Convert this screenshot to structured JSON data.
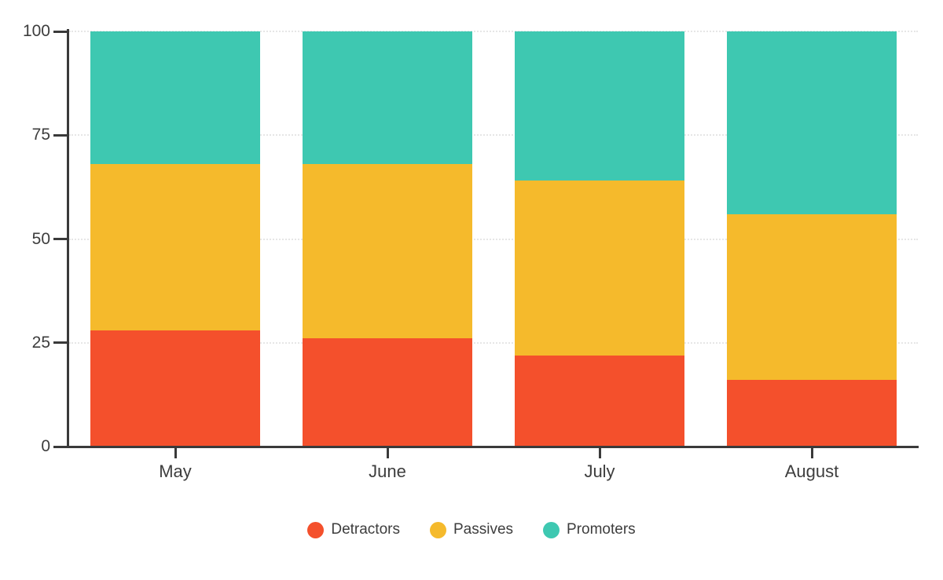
{
  "chart_data": {
    "type": "bar",
    "stacked": true,
    "title": "",
    "xlabel": "",
    "ylabel": "",
    "categories": [
      "May",
      "June",
      "July",
      "August"
    ],
    "series": [
      {
        "name": "Detractors",
        "color": "#f4502c",
        "values": [
          28,
          26,
          22,
          16
        ]
      },
      {
        "name": "Passives",
        "color": "#f5ba2c",
        "values": [
          40,
          42,
          42,
          40
        ]
      },
      {
        "name": "Promoters",
        "color": "#3ec8b1",
        "values": [
          32,
          32,
          36,
          44
        ]
      }
    ],
    "ylim": [
      0,
      100
    ],
    "yticks": [
      0,
      25,
      50,
      75,
      100
    ],
    "grid": "horizontal-dotted",
    "legend_position": "bottom"
  },
  "colors": {
    "axis": "#3a3a3a",
    "text": "#3d3d3d",
    "gridline": "#e6e6e6",
    "background": "#ffffff"
  }
}
